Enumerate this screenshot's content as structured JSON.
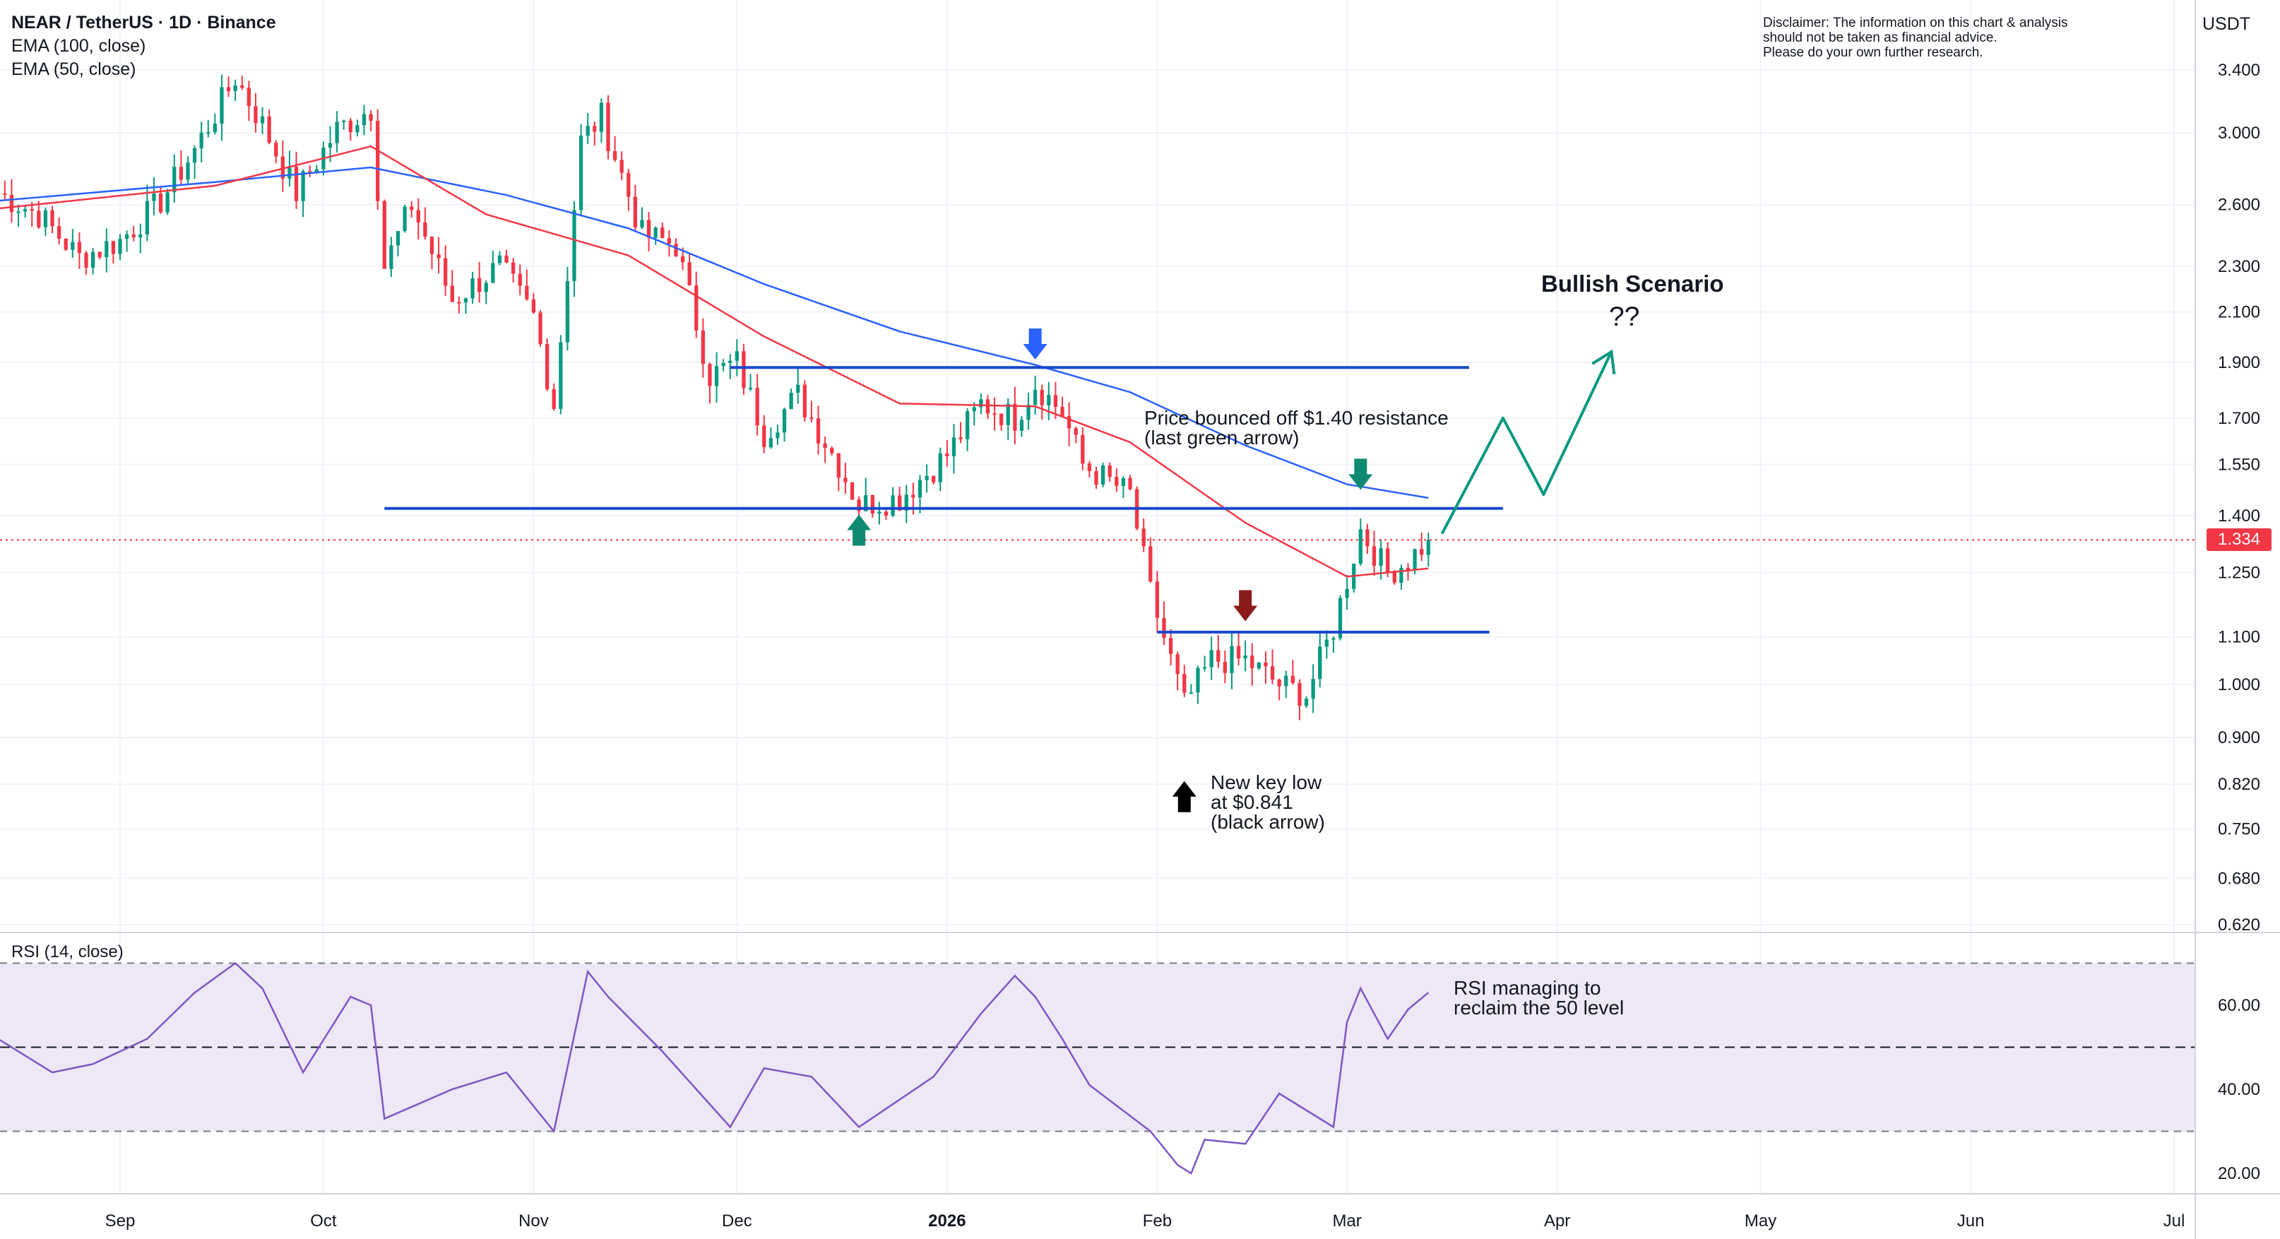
{
  "header": {
    "symbol_title": "NEAR / TetherUS · 1D · Binance",
    "indicator_1": "EMA (100, close)",
    "indicator_2": "EMA (50, close)"
  },
  "disclaimer": [
    "Disclaimer: The information on this chart & analysis",
    "should not be taken as financial advice.",
    "Please do your own further research."
  ],
  "currency": "USDT",
  "last_price_tag": "1.334",
  "annotations": {
    "bullish_title": "Bullish Scenario",
    "bullish_question": "??",
    "resistance_note": [
      "Price bounced off $1.40 resistance",
      "(last green arrow)"
    ],
    "new_low_note": [
      "New key low",
      "at $0.841",
      "(black arrow)"
    ],
    "rsi_note": [
      "RSI managing to",
      "reclaim the 50 level"
    ]
  },
  "rsi_label": "RSI (14, close)",
  "colors": {
    "up": "#089981",
    "down": "#f23645",
    "ema100": "#2962ff",
    "ema50": "#f23645",
    "hline": "#1848cc",
    "green_arrow": "#0e8a72",
    "blue_arrow": "#2962ff",
    "maroon_arrow": "#8b1a1a",
    "black_arrow": "#000000",
    "rsi_line": "#7e57c2",
    "rsi_band": "#ede7f6",
    "grid": "#f0f3fa",
    "scenario_line": "#089981"
  },
  "chart_data": {
    "type": "candlestick",
    "price_scale": "log",
    "x_tick_labels": [
      "Sep",
      "Oct",
      "Nov",
      "Dec",
      "2026",
      "Feb",
      "Mar",
      "Apr",
      "May",
      "Jun",
      "Jul"
    ],
    "x_tick_dates": [
      "2025-09-01",
      "2025-10-01",
      "2025-11-01",
      "2025-12-01",
      "2026-01-01",
      "2026-02-01",
      "2026-03-01",
      "2026-04-01",
      "2026-05-01",
      "2026-06-01",
      "2026-07-01"
    ],
    "y_tick_labels": [
      "3.400",
      "3.000",
      "2.600",
      "2.300",
      "2.100",
      "1.900",
      "1.700",
      "1.550",
      "1.400",
      "1.250",
      "1.100",
      "1.000",
      "0.900",
      "0.820",
      "0.750",
      "0.680",
      "0.620"
    ],
    "ylim": [
      0.6,
      3.6
    ],
    "last_price": 1.334,
    "series_close_path": [
      {
        "date": "2025-08-14",
        "value": 2.66
      },
      {
        "date": "2025-08-20",
        "value": 2.55
      },
      {
        "date": "2025-08-26",
        "value": 2.34
      },
      {
        "date": "2025-09-01",
        "value": 2.42
      },
      {
        "date": "2025-09-07",
        "value": 2.62
      },
      {
        "date": "2025-09-12",
        "value": 2.9
      },
      {
        "date": "2025-09-18",
        "value": 3.35
      },
      {
        "date": "2025-09-22",
        "value": 3.05
      },
      {
        "date": "2025-09-27",
        "value": 2.66
      },
      {
        "date": "2025-10-03",
        "value": 3.02
      },
      {
        "date": "2025-10-08",
        "value": 3.15
      },
      {
        "date": "2025-10-10",
        "value": 2.3
      },
      {
        "date": "2025-10-14",
        "value": 2.6
      },
      {
        "date": "2025-10-20",
        "value": 2.15
      },
      {
        "date": "2025-10-27",
        "value": 2.3
      },
      {
        "date": "2025-11-01",
        "value": 2.08
      },
      {
        "date": "2025-11-04",
        "value": 1.75
      },
      {
        "date": "2025-11-08",
        "value": 2.95
      },
      {
        "date": "2025-11-11",
        "value": 3.1
      },
      {
        "date": "2025-11-17",
        "value": 2.45
      },
      {
        "date": "2025-11-22",
        "value": 2.4
      },
      {
        "date": "2025-11-27",
        "value": 1.85
      },
      {
        "date": "2025-12-01",
        "value": 1.9
      },
      {
        "date": "2025-12-05",
        "value": 1.65
      },
      {
        "date": "2025-12-10",
        "value": 1.78
      },
      {
        "date": "2025-12-16",
        "value": 1.55
      },
      {
        "date": "2025-12-19",
        "value": 1.43
      },
      {
        "date": "2025-12-25",
        "value": 1.45
      },
      {
        "date": "2026-01-01",
        "value": 1.58
      },
      {
        "date": "2026-01-06",
        "value": 1.75
      },
      {
        "date": "2026-01-11",
        "value": 1.7
      },
      {
        "date": "2026-01-14",
        "value": 1.82
      },
      {
        "date": "2026-01-18",
        "value": 1.72
      },
      {
        "date": "2026-01-21",
        "value": 1.55
      },
      {
        "date": "2026-01-28",
        "value": 1.46
      },
      {
        "date": "2026-01-31",
        "value": 1.2
      },
      {
        "date": "2026-02-05",
        "value": 0.96
      },
      {
        "date": "2026-02-09",
        "value": 1.05
      },
      {
        "date": "2026-02-14",
        "value": 1.05
      },
      {
        "date": "2026-02-19",
        "value": 1.0
      },
      {
        "date": "2026-02-23",
        "value": 0.98
      },
      {
        "date": "2026-02-27",
        "value": 1.12
      },
      {
        "date": "2026-03-03",
        "value": 1.36
      },
      {
        "date": "2026-03-07",
        "value": 1.25
      },
      {
        "date": "2026-03-10",
        "value": 1.28
      },
      {
        "date": "2026-03-13",
        "value": 1.334
      }
    ],
    "ema_100": [
      {
        "date": "2025-08-14",
        "value": 2.62
      },
      {
        "date": "2025-09-15",
        "value": 2.72
      },
      {
        "date": "2025-10-08",
        "value": 2.8
      },
      {
        "date": "2025-10-28",
        "value": 2.65
      },
      {
        "date": "2025-11-15",
        "value": 2.48
      },
      {
        "date": "2025-12-05",
        "value": 2.22
      },
      {
        "date": "2025-12-25",
        "value": 2.02
      },
      {
        "date": "2026-01-14",
        "value": 1.89
      },
      {
        "date": "2026-01-28",
        "value": 1.79
      },
      {
        "date": "2026-02-14",
        "value": 1.61
      },
      {
        "date": "2026-03-01",
        "value": 1.49
      },
      {
        "date": "2026-03-13",
        "value": 1.45
      }
    ],
    "ema_50": [
      {
        "date": "2025-08-14",
        "value": 2.58
      },
      {
        "date": "2025-09-15",
        "value": 2.7
      },
      {
        "date": "2025-10-08",
        "value": 2.92
      },
      {
        "date": "2025-10-25",
        "value": 2.55
      },
      {
        "date": "2025-11-15",
        "value": 2.35
      },
      {
        "date": "2025-12-05",
        "value": 2.0
      },
      {
        "date": "2025-12-25",
        "value": 1.75
      },
      {
        "date": "2026-01-14",
        "value": 1.74
      },
      {
        "date": "2026-01-28",
        "value": 1.62
      },
      {
        "date": "2026-02-14",
        "value": 1.38
      },
      {
        "date": "2026-03-01",
        "value": 1.24
      },
      {
        "date": "2026-03-13",
        "value": 1.26
      }
    ],
    "horizontal_lines": [
      {
        "from": "2025-11-30",
        "to": "2026-03-19",
        "value": 1.88
      },
      {
        "from": "2025-10-10",
        "to": "2026-03-24",
        "value": 1.42
      },
      {
        "from": "2026-02-01",
        "to": "2026-03-22",
        "value": 1.11
      }
    ],
    "markers": [
      {
        "date": "2026-01-14",
        "value": 1.97,
        "kind": "down",
        "color": "blue"
      },
      {
        "date": "2026-03-03",
        "value": 1.52,
        "kind": "down",
        "color": "green"
      },
      {
        "date": "2025-12-19",
        "value": 1.36,
        "kind": "up",
        "color": "green"
      },
      {
        "date": "2026-02-14",
        "value": 1.17,
        "kind": "down",
        "color": "maroon"
      },
      {
        "date": "2026-02-05",
        "value": 0.8,
        "kind": "up",
        "color": "black"
      }
    ],
    "scenario_path": [
      {
        "date": "2026-03-15",
        "value": 1.35
      },
      {
        "date": "2026-03-24",
        "value": 1.7
      },
      {
        "date": "2026-03-30",
        "value": 1.46
      },
      {
        "date": "2026-04-09",
        "value": 1.94
      }
    ],
    "rsi": {
      "ylim": [
        15,
        78
      ],
      "y_tick_labels": [
        "60.00",
        "40.00",
        "20.00"
      ],
      "bands": [
        70,
        50,
        30
      ],
      "values": [
        {
          "date": "2025-08-14",
          "value": 52
        },
        {
          "date": "2025-08-22",
          "value": 44
        },
        {
          "date": "2025-08-28",
          "value": 46
        },
        {
          "date": "2025-09-05",
          "value": 52
        },
        {
          "date": "2025-09-12",
          "value": 63
        },
        {
          "date": "2025-09-18",
          "value": 70
        },
        {
          "date": "2025-09-22",
          "value": 64
        },
        {
          "date": "2025-09-28",
          "value": 44
        },
        {
          "date": "2025-10-05",
          "value": 62
        },
        {
          "date": "2025-10-08",
          "value": 60
        },
        {
          "date": "2025-10-10",
          "value": 33
        },
        {
          "date": "2025-10-20",
          "value": 40
        },
        {
          "date": "2025-10-28",
          "value": 44
        },
        {
          "date": "2025-11-04",
          "value": 30
        },
        {
          "date": "2025-11-09",
          "value": 68
        },
        {
          "date": "2025-11-12",
          "value": 62
        },
        {
          "date": "2025-11-20",
          "value": 49
        },
        {
          "date": "2025-11-30",
          "value": 31
        },
        {
          "date": "2025-12-05",
          "value": 45
        },
        {
          "date": "2025-12-12",
          "value": 43
        },
        {
          "date": "2025-12-19",
          "value": 31
        },
        {
          "date": "2025-12-30",
          "value": 43
        },
        {
          "date": "2026-01-06",
          "value": 58
        },
        {
          "date": "2026-01-11",
          "value": 67
        },
        {
          "date": "2026-01-14",
          "value": 62
        },
        {
          "date": "2026-01-18",
          "value": 52
        },
        {
          "date": "2026-01-22",
          "value": 41
        },
        {
          "date": "2026-01-31",
          "value": 30
        },
        {
          "date": "2026-02-04",
          "value": 22
        },
        {
          "date": "2026-02-06",
          "value": 20
        },
        {
          "date": "2026-02-08",
          "value": 28
        },
        {
          "date": "2026-02-14",
          "value": 27
        },
        {
          "date": "2026-02-19",
          "value": 39
        },
        {
          "date": "2026-02-27",
          "value": 31
        },
        {
          "date": "2026-03-01",
          "value": 56
        },
        {
          "date": "2026-03-03",
          "value": 64
        },
        {
          "date": "2026-03-07",
          "value": 52
        },
        {
          "date": "2026-03-10",
          "value": 59
        },
        {
          "date": "2026-03-13",
          "value": 63
        }
      ]
    }
  }
}
